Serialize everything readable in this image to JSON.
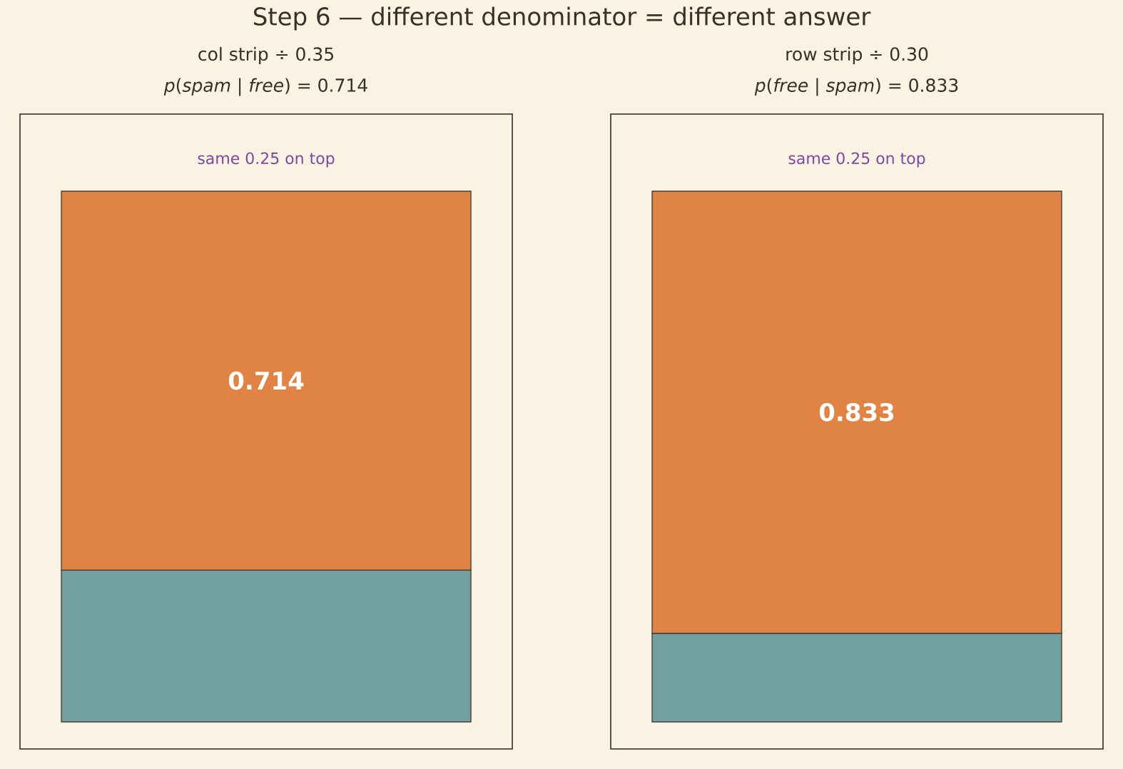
{
  "chart_data": [
    {
      "type": "other",
      "title": "Step 6 — different denominator = different answer"
    },
    {
      "type": "bar",
      "title": "col strip ÷ 0.35",
      "subtitle": "*p*(*spam* | *free*) = 0.714",
      "annotations": [
        "same 0.25 on top"
      ],
      "categories": [
        null
      ],
      "stacked": true,
      "tick_labels": false,
      "series": [
        {
          "color": "#72a0a1",
          "values": [
            0.286
          ]
        },
        {
          "color": "#e08445",
          "values": [
            0.714
          ],
          "value_labels": [
            "0.714"
          ]
        }
      ]
    },
    {
      "type": "bar",
      "title": "row strip ÷ 0.30",
      "subtitle": "*p*(*free* | *spam*) = 0.833",
      "annotations": [
        "same 0.25 on top"
      ],
      "categories": [
        null
      ],
      "stacked": true,
      "tick_labels": false,
      "series": [
        {
          "color": "#72a0a1",
          "values": [
            0.167
          ]
        },
        {
          "color": "#e08445",
          "values": [
            0.833
          ],
          "value_labels": [
            "0.833"
          ]
        }
      ]
    }
  ]
}
